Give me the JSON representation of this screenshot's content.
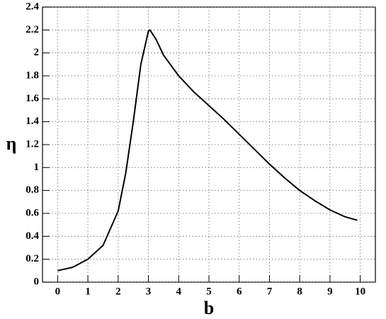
{
  "chart_data": {
    "type": "line",
    "x_label": "b",
    "y_label": "η",
    "x": [
      0,
      0.5,
      1,
      1.5,
      2,
      2.25,
      2.5,
      2.75,
      3,
      3.05,
      3.25,
      3.5,
      4,
      4.5,
      5,
      5.5,
      6,
      6.5,
      7,
      7.5,
      8,
      8.5,
      9,
      9.5,
      9.9
    ],
    "values": [
      0.1,
      0.13,
      0.2,
      0.32,
      0.62,
      0.95,
      1.4,
      1.9,
      2.19,
      2.2,
      2.12,
      1.98,
      1.8,
      1.66,
      1.54,
      1.42,
      1.29,
      1.16,
      1.03,
      0.91,
      0.8,
      0.71,
      0.63,
      0.57,
      0.54
    ],
    "color": "#000000",
    "xlim": [
      -0.5,
      10.5
    ],
    "xticks": [
      0,
      1,
      2,
      3,
      4,
      5,
      6,
      7,
      8,
      9,
      10
    ],
    "ylim": [
      0,
      2.4
    ],
    "yticks": [
      0,
      0.2,
      0.4,
      0.6,
      0.8,
      1,
      1.2,
      1.4,
      1.6,
      1.8,
      2,
      2.2,
      2.4
    ],
    "grid": true
  }
}
